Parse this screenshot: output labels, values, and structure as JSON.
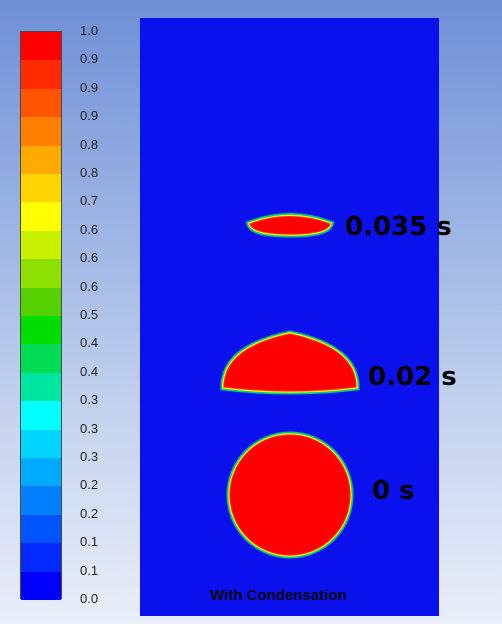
{
  "legend": {
    "colors": [
      "#ff0000",
      "#ff2a00",
      "#ff5500",
      "#ff7f00",
      "#ffaa00",
      "#ffd400",
      "#ffff00",
      "#c8f000",
      "#8ee000",
      "#55d000",
      "#00dd00",
      "#00dd55",
      "#00e6a0",
      "#00ffff",
      "#00d4ff",
      "#00aaff",
      "#007fff",
      "#0055ff",
      "#002aff",
      "#0000ff"
    ],
    "labels": [
      "1.0",
      "0.9",
      "0.9",
      "0.9",
      "0.8",
      "0.8",
      "0.7",
      "0.6",
      "0.6",
      "0.6",
      "0.5",
      "0.4",
      "0.4",
      "0.3",
      "0.3",
      "0.3",
      "0.2",
      "0.2",
      "0.1",
      "0.1",
      "0.0"
    ]
  },
  "colors": {
    "background_liquid": "#0a11ec",
    "droplet": "#ff0000",
    "interface": "#00ffaa"
  },
  "annotations": {
    "t1": "0.035 s",
    "t2": "0.02 s",
    "t3": "0 s"
  },
  "caption": "With Condensation"
}
